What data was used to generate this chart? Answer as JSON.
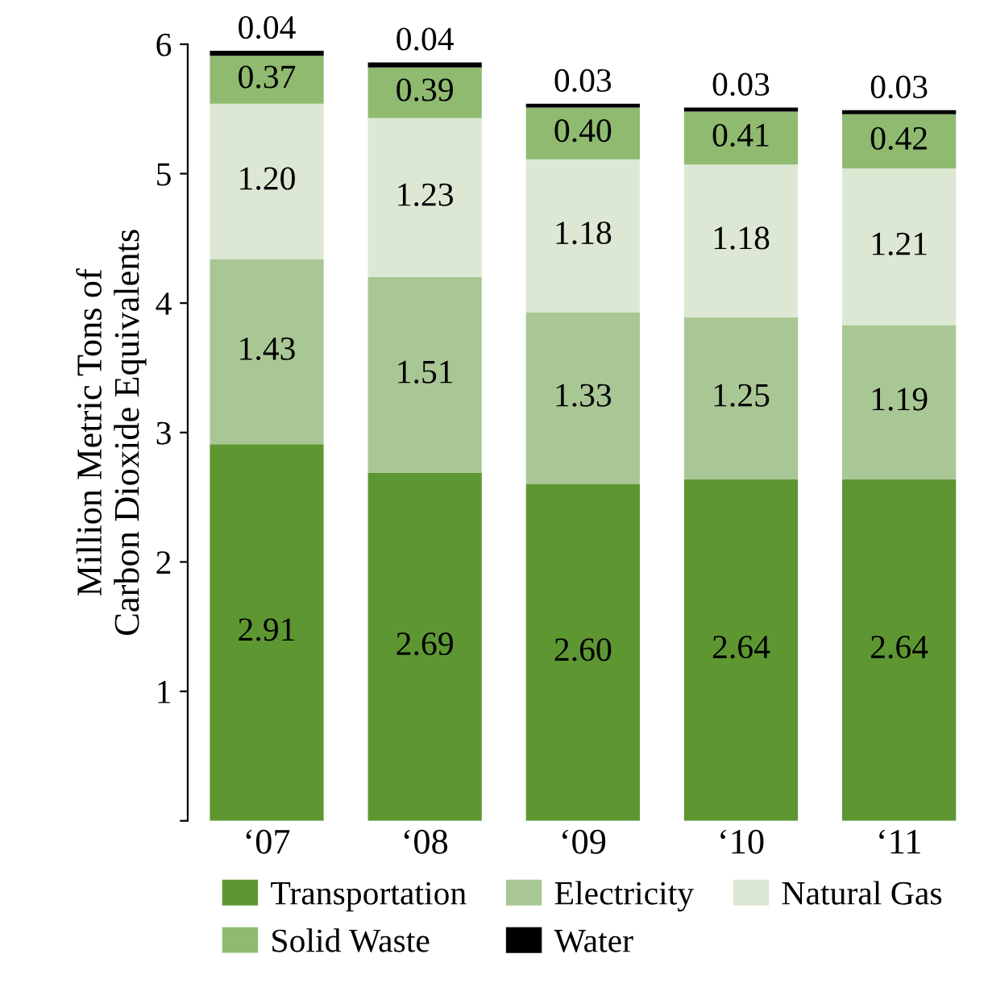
{
  "chart_data": {
    "type": "bar",
    "stacked": true,
    "ylabel": "Million Metric Tons of\nCarbon Dioxide Equivalents",
    "categories": [
      "‘07",
      "‘08",
      "‘09",
      "‘10",
      "‘11"
    ],
    "series": [
      {
        "name": "Transportation",
        "color": "#5e9732",
        "values": [
          2.91,
          2.69,
          2.6,
          2.64,
          2.64
        ],
        "value_labels": [
          "2.91",
          "2.69",
          "2.60",
          "2.64",
          "2.64"
        ]
      },
      {
        "name": "Electricity",
        "color": "#a9c795",
        "values": [
          1.43,
          1.51,
          1.33,
          1.25,
          1.19
        ],
        "value_labels": [
          "1.43",
          "1.51",
          "1.33",
          "1.25",
          "1.19"
        ]
      },
      {
        "name": "Natural Gas",
        "color": "#dce8d3",
        "values": [
          1.2,
          1.23,
          1.18,
          1.18,
          1.21
        ],
        "value_labels": [
          "1.20",
          "1.23",
          "1.18",
          "1.18",
          "1.21"
        ]
      },
      {
        "name": "Solid Waste",
        "color": "#8fba70",
        "values": [
          0.37,
          0.39,
          0.4,
          0.41,
          0.42
        ],
        "value_labels": [
          "0.37",
          "0.39",
          "0.40",
          "0.41",
          "0.42"
        ]
      },
      {
        "name": "Water",
        "color": "#000000",
        "values": [
          0.04,
          0.04,
          0.03,
          0.03,
          0.03
        ],
        "value_labels": [
          "0.04",
          "0.04",
          "0.03",
          "0.03",
          "0.03"
        ]
      }
    ],
    "ylim": [
      0,
      6
    ],
    "yticks": [
      {
        "value": 0,
        "label": null
      },
      1,
      2,
      3,
      4,
      5,
      6
    ],
    "grid": false,
    "legend": "bottom"
  }
}
